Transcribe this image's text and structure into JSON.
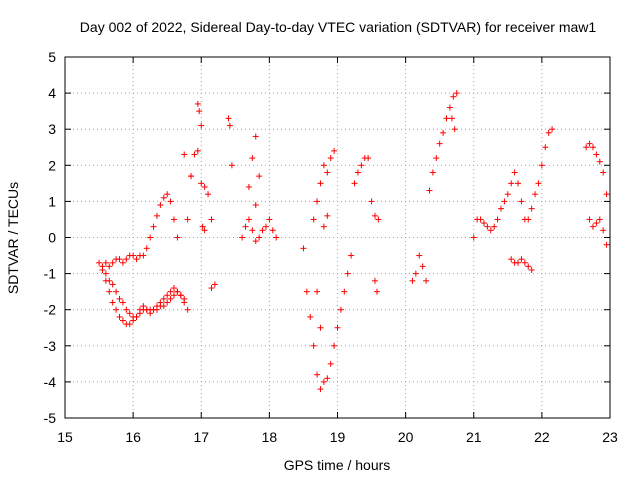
{
  "chart_data": {
    "type": "scatter",
    "title": "Day 002 of 2022, Sidereal Day-to-day VTEC variation (SDTVAR) for receiver maw1",
    "xlabel": "GPS time / hours",
    "ylabel": "SDTVAR / TECUs",
    "xlim": [
      15,
      23
    ],
    "ylim": [
      -5,
      5
    ],
    "xticks": [
      15,
      16,
      17,
      18,
      19,
      20,
      21,
      22,
      23
    ],
    "yticks": [
      -5,
      -4,
      -3,
      -2,
      -1,
      0,
      1,
      2,
      3,
      4,
      5
    ],
    "grid": true,
    "marker": "+",
    "color": "#ff0000",
    "series": [
      {
        "name": "SDTVAR",
        "x": [
          15.5,
          15.55,
          15.6,
          15.65,
          15.7,
          15.75,
          15.8,
          15.85,
          15.9,
          15.95,
          16.0,
          16.05,
          16.1,
          16.15,
          16.2,
          16.25,
          16.3,
          16.35,
          16.4,
          16.45,
          16.5,
          16.55,
          16.6,
          16.65,
          16.7,
          16.75,
          16.8,
          15.55,
          15.6,
          15.65,
          15.7,
          15.75,
          15.8,
          15.85,
          15.9,
          15.95,
          16.0,
          16.05,
          16.1,
          16.15,
          16.2,
          16.25,
          16.3,
          16.35,
          16.4,
          16.45,
          16.5,
          16.55,
          16.6,
          16.65,
          16.7,
          16.75,
          15.6,
          15.65,
          15.7,
          15.75,
          15.8,
          15.85,
          15.9,
          15.95,
          16.0,
          16.05,
          16.1,
          16.15,
          16.2,
          16.25,
          16.3,
          16.35,
          16.4,
          16.45,
          16.5,
          16.55,
          16.6,
          16.65,
          16.8,
          16.85,
          16.9,
          16.95,
          17.0,
          17.05,
          17.1,
          17.15,
          16.95,
          16.97,
          17.0,
          17.02,
          17.05,
          16.75,
          16.85,
          17.4,
          17.42,
          17.45,
          17.2,
          17.15,
          17.6,
          17.65,
          17.7,
          17.75,
          17.8,
          17.85,
          17.9,
          17.95,
          18.0,
          18.05,
          18.1,
          17.8,
          17.85,
          17.75,
          17.7,
          17.8,
          18.5,
          18.55,
          18.6,
          18.65,
          18.7,
          18.75,
          18.8,
          18.85,
          18.9,
          18.95,
          19.0,
          19.05,
          19.1,
          19.15,
          19.2,
          18.65,
          18.7,
          18.75,
          18.8,
          18.85,
          18.9,
          18.95,
          18.7,
          18.75,
          18.8,
          18.85,
          19.25,
          19.3,
          19.35,
          19.4,
          19.45,
          19.5,
          19.55,
          19.6,
          19.55,
          19.58,
          20.1,
          20.15,
          20.2,
          20.25,
          20.3,
          20.35,
          20.4,
          20.45,
          20.5,
          20.55,
          20.6,
          20.65,
          20.7,
          20.75,
          20.68,
          20.72,
          21.0,
          21.05,
          21.1,
          21.15,
          21.2,
          21.25,
          21.3,
          21.35,
          21.4,
          21.45,
          21.5,
          21.55,
          21.6,
          21.65,
          21.7,
          21.75,
          21.8,
          21.85,
          21.9,
          21.95,
          22.0,
          22.05,
          22.1,
          22.15,
          21.55,
          21.6,
          21.65,
          21.7,
          21.75,
          21.8,
          21.85,
          22.65,
          22.7,
          22.75,
          22.8,
          22.85,
          22.9,
          22.95,
          22.7,
          22.75,
          22.8,
          22.85,
          22.9,
          22.95
        ],
        "y": [
          -0.7,
          -0.8,
          -1.0,
          -1.2,
          -1.3,
          -1.5,
          -1.7,
          -1.8,
          -2.0,
          -2.1,
          -2.2,
          -2.2,
          -2.0,
          -1.9,
          -2.0,
          -2.1,
          -2.0,
          -1.9,
          -1.8,
          -1.7,
          -1.6,
          -1.5,
          -1.4,
          -1.5,
          -1.6,
          -1.8,
          -2.0,
          -0.9,
          -1.2,
          -1.5,
          -1.8,
          -2.0,
          -2.2,
          -2.3,
          -2.4,
          -2.4,
          -2.3,
          -2.2,
          -2.1,
          -2.0,
          -2.0,
          -2.0,
          -2.0,
          -2.0,
          -1.9,
          -1.9,
          -1.8,
          -1.7,
          -1.6,
          -1.5,
          -1.6,
          -1.7,
          -0.7,
          -0.8,
          -0.7,
          -0.6,
          -0.6,
          -0.7,
          -0.6,
          -0.5,
          -0.5,
          -0.6,
          -0.5,
          -0.5,
          -0.3,
          0.0,
          0.3,
          0.6,
          0.9,
          1.1,
          1.2,
          1.0,
          0.5,
          0.0,
          0.5,
          1.7,
          2.3,
          2.4,
          1.5,
          1.4,
          1.2,
          0.5,
          3.7,
          3.5,
          3.1,
          0.3,
          0.2,
          2.3,
          1.7,
          3.3,
          3.1,
          2.0,
          -1.3,
          -1.4,
          0.0,
          0.3,
          0.5,
          0.2,
          -0.1,
          0.0,
          0.2,
          0.3,
          0.5,
          0.2,
          0.0,
          2.8,
          1.7,
          2.2,
          1.4,
          0.9,
          -0.3,
          -1.5,
          -2.2,
          -3.0,
          -3.8,
          -4.2,
          -4.0,
          -3.9,
          -3.5,
          -3.0,
          -2.5,
          -2.0,
          -1.5,
          -1.0,
          -0.5,
          0.5,
          1.0,
          1.5,
          2.0,
          1.8,
          2.2,
          2.4,
          -1.5,
          -2.5,
          0.3,
          0.6,
          1.5,
          1.8,
          2.0,
          2.2,
          2.2,
          1.0,
          0.6,
          0.5,
          -1.2,
          -1.5,
          -1.2,
          -1.0,
          -0.5,
          -0.8,
          -1.2,
          1.3,
          1.8,
          2.2,
          2.6,
          2.9,
          3.3,
          3.6,
          3.9,
          4.0,
          3.3,
          3.0,
          0.0,
          0.5,
          0.5,
          0.4,
          0.3,
          0.2,
          0.3,
          0.5,
          0.8,
          1.0,
          1.2,
          1.5,
          1.8,
          1.5,
          1.0,
          0.5,
          0.5,
          0.8,
          1.2,
          1.5,
          2.0,
          2.5,
          2.9,
          3.0,
          -0.6,
          -0.7,
          -0.7,
          -0.6,
          -0.7,
          -0.8,
          -0.9,
          2.5,
          2.6,
          2.5,
          2.3,
          2.1,
          1.8,
          1.2,
          0.5,
          0.3,
          0.4,
          0.5,
          0.2,
          -0.2
        ]
      }
    ]
  }
}
